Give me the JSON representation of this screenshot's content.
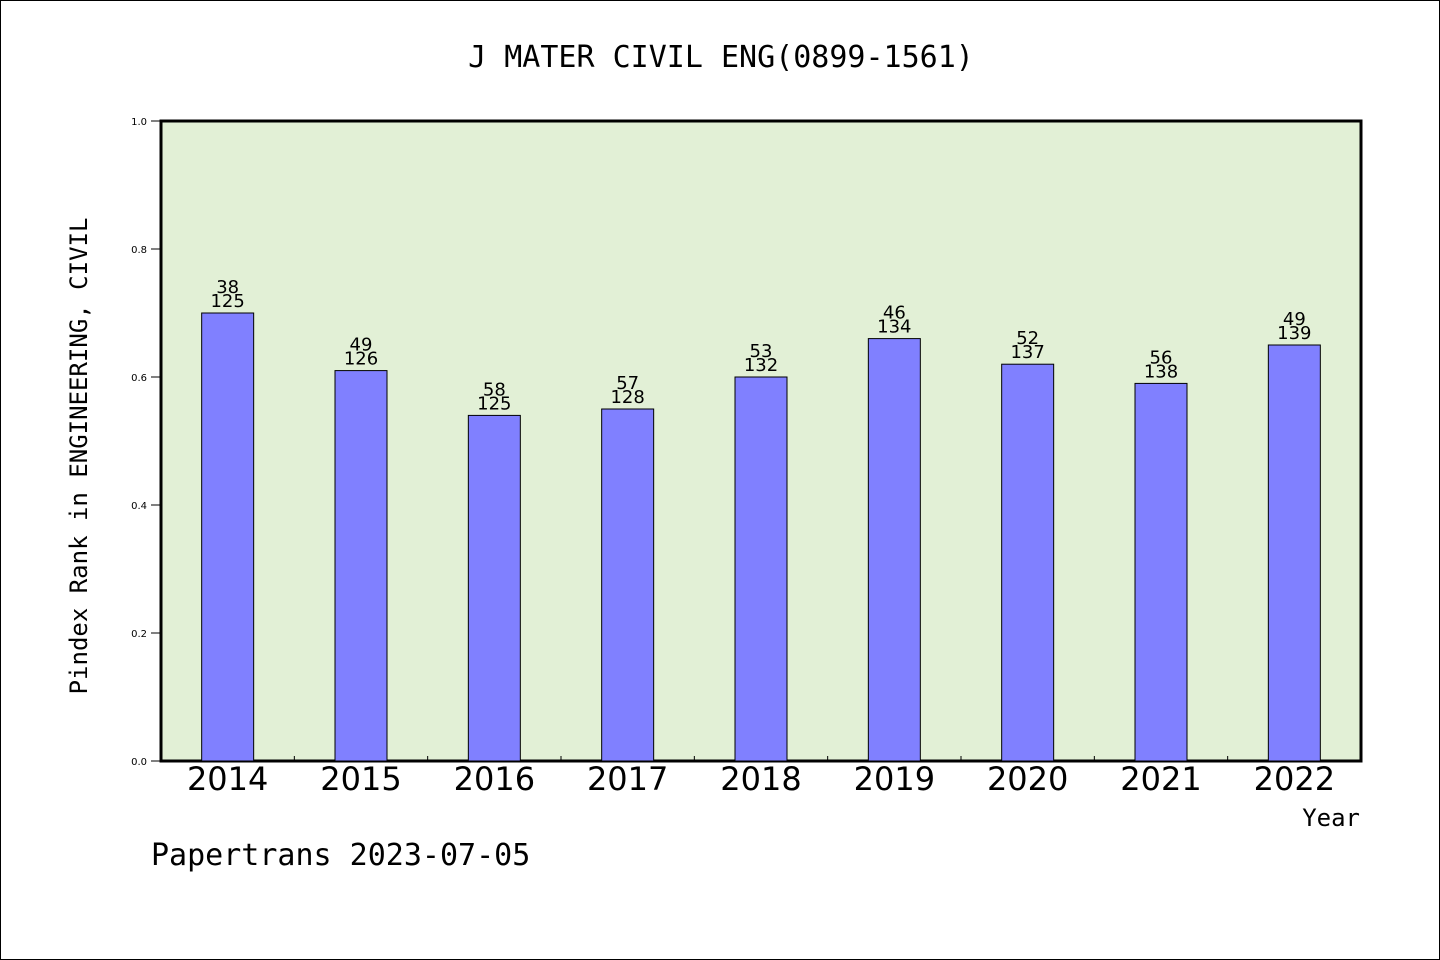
{
  "chart_data": {
    "type": "bar",
    "title": "J MATER CIVIL ENG(0899-1561)",
    "ylabel": "Pindex Rank in ENGINEERING, CIVIL",
    "xlabel": "Year",
    "categories": [
      "2014",
      "2015",
      "2016",
      "2017",
      "2018",
      "2019",
      "2020",
      "2021",
      "2022"
    ],
    "values": [
      0.7,
      0.61,
      0.54,
      0.55,
      0.6,
      0.66,
      0.62,
      0.59,
      0.65
    ],
    "rank": [
      "38",
      "49",
      "58",
      "57",
      "53",
      "46",
      "52",
      "56",
      "49"
    ],
    "total": [
      "125",
      "126",
      "125",
      "128",
      "132",
      "134",
      "137",
      "138",
      "139"
    ],
    "yticks": [
      "0.0",
      "0.2",
      "0.4",
      "0.6",
      "0.8",
      "1.0"
    ],
    "ylim": [
      0,
      1
    ],
    "grid": false,
    "colors": {
      "bar": "#8080ff",
      "plot_bg": "#e2f0d6",
      "axis": "#000000"
    }
  },
  "footer": "Papertrans 2023-07-05"
}
